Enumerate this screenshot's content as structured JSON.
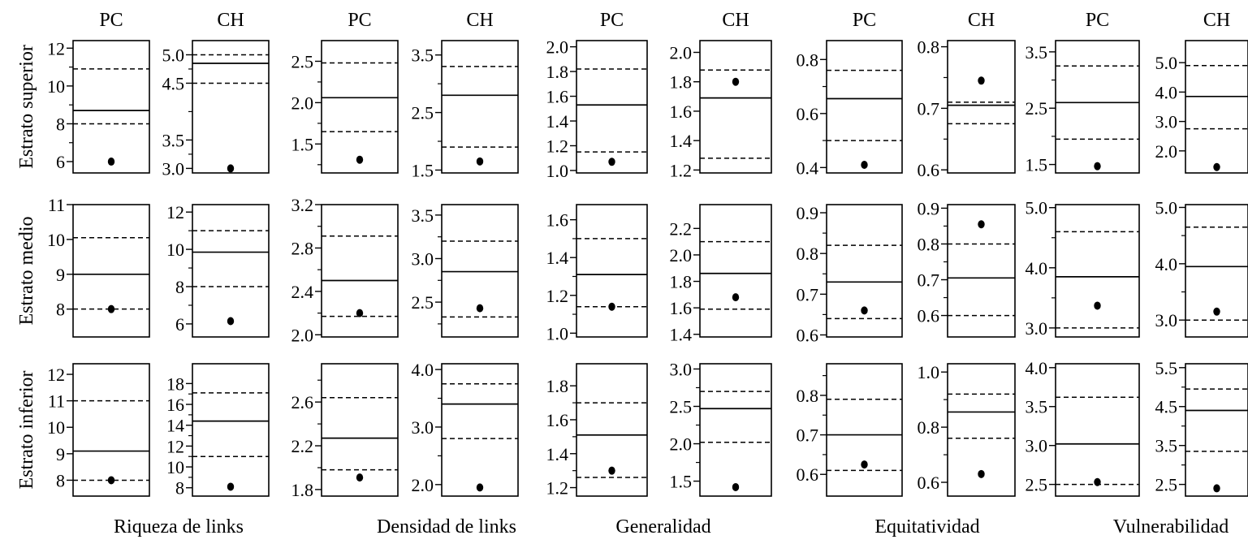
{
  "figure": {
    "col_headers": [
      "PC",
      "CH",
      "PC",
      "CH",
      "PC",
      "CH",
      "PC",
      "CH",
      "PC",
      "CH"
    ],
    "row_labels": [
      "Estrato superior",
      "Estrato medio",
      "Estrato inferior"
    ],
    "group_labels": [
      "Riqueza de links",
      "Densidad de links",
      "Generalidad",
      "Equitatividad",
      "Vulnerabilidad"
    ]
  },
  "chart_data": [
    {
      "type": "scatter",
      "row": "Estrato superior",
      "group": "Riqueza de links",
      "site": "PC",
      "ylim": [
        5.4,
        12.4
      ],
      "ticks": [
        6,
        8,
        10,
        12
      ],
      "minor_ticks": [
        7,
        9,
        11
      ],
      "tick_labels": [
        "6",
        "8",
        "10",
        "12"
      ],
      "mean": 8.7,
      "ci_lower": 8.0,
      "ci_upper": 10.9,
      "observed": 6.0
    },
    {
      "type": "scatter",
      "row": "Estrato superior",
      "group": "Riqueza de links",
      "site": "CH",
      "ylim": [
        2.92,
        5.25
      ],
      "ticks": [
        3.0,
        3.5,
        4.5,
        5.0
      ],
      "minor_ticks": [
        3.25,
        4.0,
        4.75
      ],
      "tick_labels": [
        "3.0",
        "3.5",
        "4.5",
        "5.0"
      ],
      "mean": 4.85,
      "ci_lower": 4.5,
      "ci_upper": 5.0,
      "observed": 3.0
    },
    {
      "type": "scatter",
      "row": "Estrato superior",
      "group": "Densidad de links",
      "site": "PC",
      "ylim": [
        1.15,
        2.75
      ],
      "ticks": [
        1.5,
        2.0,
        2.5
      ],
      "minor_ticks": [
        1.25,
        1.75,
        2.25
      ],
      "tick_labels": [
        "1.5",
        "2.0",
        "2.5"
      ],
      "mean": 2.06,
      "ci_lower": 1.65,
      "ci_upper": 2.48,
      "observed": 1.31
    },
    {
      "type": "scatter",
      "row": "Estrato superior",
      "group": "Densidad de links",
      "site": "CH",
      "ylim": [
        1.45,
        3.75
      ],
      "ticks": [
        1.5,
        2.5,
        3.5
      ],
      "minor_ticks": [
        2.0,
        3.0
      ],
      "tick_labels": [
        "1.5",
        "2.5",
        "3.5"
      ],
      "mean": 2.8,
      "ci_lower": 1.9,
      "ci_upper": 3.3,
      "observed": 1.65
    },
    {
      "type": "scatter",
      "row": "Estrato superior",
      "group": "Generalidad",
      "site": "PC",
      "ylim": [
        0.98,
        2.05
      ],
      "ticks": [
        1.0,
        1.2,
        1.4,
        1.6,
        1.8,
        2.0
      ],
      "minor_ticks": [],
      "tick_labels": [
        "1.0",
        "1.2",
        "1.4",
        "1.6",
        "1.8",
        "2.0"
      ],
      "mean": 1.53,
      "ci_lower": 1.15,
      "ci_upper": 1.82,
      "observed": 1.07
    },
    {
      "type": "scatter",
      "row": "Estrato superior",
      "group": "Generalidad",
      "site": "CH",
      "ylim": [
        1.18,
        2.08
      ],
      "ticks": [
        1.2,
        1.4,
        1.6,
        1.8,
        2.0
      ],
      "minor_ticks": [],
      "tick_labels": [
        "1.2",
        "1.4",
        "1.6",
        "1.8",
        "2.0"
      ],
      "mean": 1.69,
      "ci_lower": 1.28,
      "ci_upper": 1.88,
      "observed": 1.8
    },
    {
      "type": "scatter",
      "row": "Estrato superior",
      "group": "Equitatividad",
      "site": "PC",
      "ylim": [
        0.38,
        0.87
      ],
      "ticks": [
        0.4,
        0.6,
        0.8
      ],
      "minor_ticks": [
        0.5,
        0.7
      ],
      "tick_labels": [
        "0.4",
        "0.6",
        "0.8"
      ],
      "mean": 0.655,
      "ci_lower": 0.5,
      "ci_upper": 0.76,
      "observed": 0.41
    },
    {
      "type": "scatter",
      "row": "Estrato superior",
      "group": "Equitatividad",
      "site": "CH",
      "ylim": [
        0.595,
        0.81
      ],
      "ticks": [
        0.6,
        0.7,
        0.8
      ],
      "minor_ticks": [
        0.65,
        0.75
      ],
      "tick_labels": [
        "0.6",
        "0.7",
        "0.8"
      ],
      "mean": 0.705,
      "ci_lower": 0.675,
      "ci_upper": 0.71,
      "observed": 0.745
    },
    {
      "type": "scatter",
      "row": "Estrato superior",
      "group": "Vulnerabilidad",
      "site": "PC",
      "ylim": [
        1.35,
        3.7
      ],
      "ticks": [
        1.5,
        2.5,
        3.5
      ],
      "minor_ticks": [
        2.0,
        3.0
      ],
      "tick_labels": [
        "1.5",
        "2.5",
        "3.5"
      ],
      "mean": 2.6,
      "ci_lower": 1.95,
      "ci_upper": 3.25,
      "observed": 1.47
    },
    {
      "type": "scatter",
      "row": "Estrato superior",
      "group": "Vulnerabilidad",
      "site": "CH",
      "ylim": [
        1.25,
        5.75
      ],
      "ticks": [
        2.0,
        3.0,
        4.0,
        5.0
      ],
      "minor_ticks": [],
      "tick_labels": [
        "2.0",
        "3.0",
        "4.0",
        "5.0"
      ],
      "mean": 3.85,
      "ci_lower": 2.75,
      "ci_upper": 4.9,
      "observed": 1.45
    },
    {
      "type": "scatter",
      "row": "Estrato medio",
      "group": "Riqueza de links",
      "site": "PC",
      "ylim": [
        7.2,
        11.0
      ],
      "ticks": [
        8,
        9,
        10,
        11
      ],
      "minor_ticks": [],
      "tick_labels": [
        "8",
        "9",
        "10",
        "11"
      ],
      "mean": 9.0,
      "ci_lower": 8.0,
      "ci_upper": 10.05,
      "observed": 8.0
    },
    {
      "type": "scatter",
      "row": "Estrato medio",
      "group": "Riqueza de links",
      "site": "CH",
      "ylim": [
        5.3,
        12.4
      ],
      "ticks": [
        6,
        8,
        10,
        12
      ],
      "minor_ticks": [
        7,
        9,
        11
      ],
      "tick_labels": [
        "6",
        "8",
        "10",
        "12"
      ],
      "mean": 9.85,
      "ci_lower": 8.0,
      "ci_upper": 11.0,
      "observed": 6.15
    },
    {
      "type": "scatter",
      "row": "Estrato medio",
      "group": "Densidad de links",
      "site": "PC",
      "ylim": [
        1.98,
        3.2
      ],
      "ticks": [
        2.0,
        2.4,
        2.8,
        3.2
      ],
      "minor_ticks": [
        2.2,
        2.6,
        3.0
      ],
      "tick_labels": [
        "2.0",
        "2.4",
        "2.8",
        "3.2"
      ],
      "mean": 2.5,
      "ci_lower": 2.17,
      "ci_upper": 2.91,
      "observed": 2.2
    },
    {
      "type": "scatter",
      "row": "Estrato medio",
      "group": "Densidad de links",
      "site": "CH",
      "ylim": [
        2.1,
        3.62
      ],
      "ticks": [
        2.5,
        3.0,
        3.5
      ],
      "minor_ticks": [
        2.25,
        2.75,
        3.25
      ],
      "tick_labels": [
        "2.5",
        "3.0",
        "3.5"
      ],
      "mean": 2.85,
      "ci_lower": 2.33,
      "ci_upper": 3.2,
      "observed": 2.43
    },
    {
      "type": "scatter",
      "row": "Estrato medio",
      "group": "Generalidad",
      "site": "PC",
      "ylim": [
        0.98,
        1.68
      ],
      "ticks": [
        1.0,
        1.2,
        1.4,
        1.6
      ],
      "minor_ticks": [
        1.1,
        1.3,
        1.5
      ],
      "tick_labels": [
        "1.0",
        "1.2",
        "1.4",
        "1.6"
      ],
      "mean": 1.31,
      "ci_lower": 1.14,
      "ci_upper": 1.5,
      "observed": 1.14
    },
    {
      "type": "scatter",
      "row": "Estrato medio",
      "group": "Generalidad",
      "site": "CH",
      "ylim": [
        1.38,
        2.38
      ],
      "ticks": [
        1.4,
        1.6,
        1.8,
        2.0,
        2.2
      ],
      "minor_ticks": [],
      "tick_labels": [
        "1.4",
        "1.6",
        "1.8",
        "2.0",
        "2.2"
      ],
      "mean": 1.86,
      "ci_lower": 1.59,
      "ci_upper": 2.1,
      "observed": 1.68
    },
    {
      "type": "scatter",
      "row": "Estrato medio",
      "group": "Equitatividad",
      "site": "PC",
      "ylim": [
        0.595,
        0.92
      ],
      "ticks": [
        0.6,
        0.7,
        0.8,
        0.9
      ],
      "minor_ticks": [
        0.65,
        0.75,
        0.85
      ],
      "tick_labels": [
        "0.6",
        "0.7",
        "0.8",
        "0.9"
      ],
      "mean": 0.73,
      "ci_lower": 0.64,
      "ci_upper": 0.82,
      "observed": 0.66
    },
    {
      "type": "scatter",
      "row": "Estrato medio",
      "group": "Equitatividad",
      "site": "CH",
      "ylim": [
        0.54,
        0.91
      ],
      "ticks": [
        0.6,
        0.7,
        0.8,
        0.9
      ],
      "minor_ticks": [
        0.65,
        0.75,
        0.85
      ],
      "tick_labels": [
        "0.6",
        "0.7",
        "0.8",
        "0.9"
      ],
      "mean": 0.705,
      "ci_lower": 0.6,
      "ci_upper": 0.8,
      "observed": 0.855
    },
    {
      "type": "scatter",
      "row": "Estrato medio",
      "group": "Vulnerabilidad",
      "site": "PC",
      "ylim": [
        2.85,
        5.05
      ],
      "ticks": [
        3.0,
        4.0,
        5.0
      ],
      "minor_ticks": [
        3.5,
        4.5
      ],
      "tick_labels": [
        "3.0",
        "4.0",
        "5.0"
      ],
      "mean": 3.85,
      "ci_lower": 3.0,
      "ci_upper": 4.6,
      "observed": 3.37
    },
    {
      "type": "scatter",
      "row": "Estrato medio",
      "group": "Vulnerabilidad",
      "site": "CH",
      "ylim": [
        2.7,
        5.05
      ],
      "ticks": [
        3.0,
        4.0,
        5.0
      ],
      "minor_ticks": [
        3.5,
        4.5
      ],
      "tick_labels": [
        "3.0",
        "4.0",
        "5.0"
      ],
      "mean": 3.95,
      "ci_lower": 3.0,
      "ci_upper": 4.65,
      "observed": 3.15
    },
    {
      "type": "scatter",
      "row": "Estrato inferior",
      "group": "Riqueza de links",
      "site": "PC",
      "ylim": [
        7.4,
        12.4
      ],
      "ticks": [
        8,
        9,
        10,
        11,
        12
      ],
      "minor_ticks": [],
      "tick_labels": [
        "8",
        "9",
        "10",
        "11",
        "12"
      ],
      "mean": 9.1,
      "ci_lower": 8.0,
      "ci_upper": 11.0,
      "observed": 8.0
    },
    {
      "type": "scatter",
      "row": "Estrato inferior",
      "group": "Riqueza de links",
      "site": "CH",
      "ylim": [
        7.2,
        19.9
      ],
      "ticks": [
        8,
        10,
        12,
        14,
        16,
        18
      ],
      "minor_ticks": [
        9,
        11,
        13,
        15,
        17
      ],
      "tick_labels": [
        "8",
        "10",
        "12",
        "14",
        "16",
        "18"
      ],
      "mean": 14.4,
      "ci_lower": 11.0,
      "ci_upper": 17.1,
      "observed": 8.1
    },
    {
      "type": "scatter",
      "row": "Estrato inferior",
      "group": "Densidad de links",
      "site": "PC",
      "ylim": [
        1.74,
        2.95
      ],
      "ticks": [
        1.8,
        2.2,
        2.6
      ],
      "minor_ticks": [
        2.0,
        2.4,
        2.8
      ],
      "tick_labels": [
        "1.8",
        "2.2",
        "2.6"
      ],
      "mean": 2.27,
      "ci_lower": 1.98,
      "ci_upper": 2.64,
      "observed": 1.91
    },
    {
      "type": "scatter",
      "row": "Estrato inferior",
      "group": "Densidad de links",
      "site": "CH",
      "ylim": [
        1.8,
        4.1
      ],
      "ticks": [
        2.0,
        3.0,
        4.0
      ],
      "minor_ticks": [
        2.5,
        3.5
      ],
      "tick_labels": [
        "2.0",
        "3.0",
        "4.0"
      ],
      "mean": 3.4,
      "ci_lower": 2.8,
      "ci_upper": 3.75,
      "observed": 1.95
    },
    {
      "type": "scatter",
      "row": "Estrato inferior",
      "group": "Generalidad",
      "site": "PC",
      "ylim": [
        1.15,
        1.93
      ],
      "ticks": [
        1.2,
        1.4,
        1.6,
        1.8
      ],
      "minor_ticks": [
        1.3,
        1.5,
        1.7
      ],
      "tick_labels": [
        "1.2",
        "1.4",
        "1.6",
        "1.8"
      ],
      "mean": 1.51,
      "ci_lower": 1.26,
      "ci_upper": 1.7,
      "observed": 1.3
    },
    {
      "type": "scatter",
      "row": "Estrato inferior",
      "group": "Generalidad",
      "site": "CH",
      "ylim": [
        1.3,
        3.07
      ],
      "ticks": [
        1.5,
        2.0,
        2.5,
        3.0
      ],
      "minor_ticks": [
        1.75,
        2.25,
        2.75
      ],
      "tick_labels": [
        "1.5",
        "2.0",
        "2.5",
        "3.0"
      ],
      "mean": 2.47,
      "ci_lower": 2.02,
      "ci_upper": 2.7,
      "observed": 1.42
    },
    {
      "type": "scatter",
      "row": "Estrato inferior",
      "group": "Equitatividad",
      "site": "PC",
      "ylim": [
        0.545,
        0.88
      ],
      "ticks": [
        0.6,
        0.7,
        0.8
      ],
      "minor_ticks": [
        0.65,
        0.75,
        0.85
      ],
      "tick_labels": [
        "0.6",
        "0.7",
        "0.8"
      ],
      "mean": 0.7,
      "ci_lower": 0.61,
      "ci_upper": 0.79,
      "observed": 0.625
    },
    {
      "type": "scatter",
      "row": "Estrato inferior",
      "group": "Equitatividad",
      "site": "CH",
      "ylim": [
        0.55,
        1.03
      ],
      "ticks": [
        0.6,
        0.8,
        1.0
      ],
      "minor_ticks": [
        0.7,
        0.9
      ],
      "tick_labels": [
        "0.6",
        "0.8",
        "1.0"
      ],
      "mean": 0.855,
      "ci_lower": 0.76,
      "ci_upper": 0.92,
      "observed": 0.63
    },
    {
      "type": "scatter",
      "row": "Estrato inferior",
      "group": "Vulnerabilidad",
      "site": "PC",
      "ylim": [
        2.35,
        4.05
      ],
      "ticks": [
        2.5,
        3.0,
        3.5,
        4.0
      ],
      "minor_ticks": [],
      "tick_labels": [
        "2.5",
        "3.0",
        "3.5",
        "4.0"
      ],
      "mean": 3.02,
      "ci_lower": 2.5,
      "ci_upper": 3.62,
      "observed": 2.53
    },
    {
      "type": "scatter",
      "row": "Estrato inferior",
      "group": "Vulnerabilidad",
      "site": "CH",
      "ylim": [
        2.2,
        5.6
      ],
      "ticks": [
        2.5,
        3.5,
        4.5,
        5.5
      ],
      "minor_ticks": [
        3.0,
        4.0,
        5.0
      ],
      "tick_labels": [
        "2.5",
        "3.5",
        "4.5",
        "5.5"
      ],
      "mean": 4.4,
      "ci_lower": 3.35,
      "ci_upper": 4.95,
      "observed": 2.4
    }
  ]
}
